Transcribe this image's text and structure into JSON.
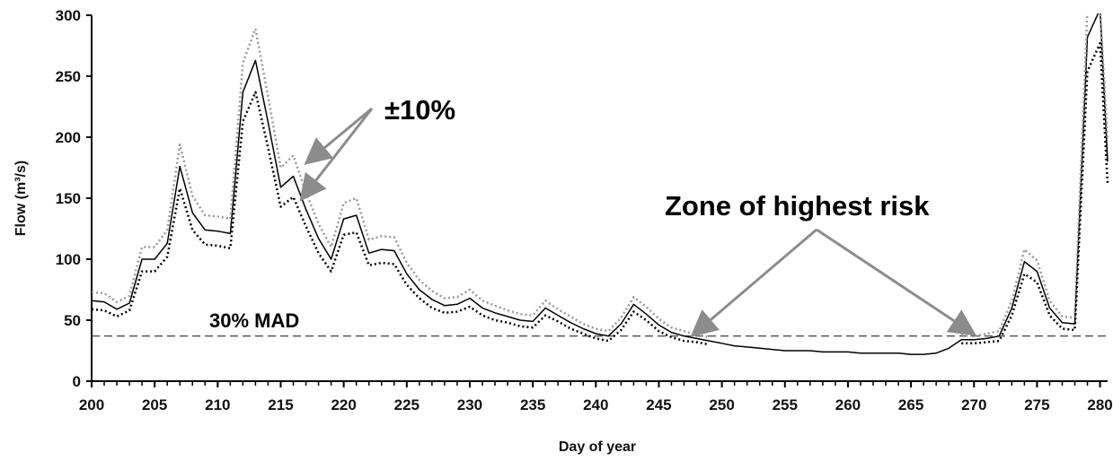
{
  "chart_data": {
    "type": "line",
    "xlabel": "Day of year",
    "ylabel": "Flow (m³/s)",
    "xlim": [
      200,
      280.6
    ],
    "ylim": [
      0,
      300
    ],
    "x_ticks": [
      200,
      205,
      210,
      215,
      220,
      225,
      230,
      235,
      240,
      245,
      250,
      255,
      260,
      265,
      270,
      275,
      280
    ],
    "y_ticks": [
      0,
      50,
      100,
      150,
      200,
      250,
      300
    ],
    "grid": false,
    "colors": {
      "flow": "#000000",
      "plus10": "#999999",
      "minus10": "#000000",
      "mad": "#555555",
      "arrow": "#8c8c8c"
    },
    "x": [
      200,
      201,
      202,
      203,
      204,
      205,
      206,
      207,
      208,
      209,
      210,
      211,
      212,
      213,
      214,
      215,
      216,
      217,
      218,
      219,
      220,
      221,
      222,
      223,
      224,
      225,
      226,
      227,
      228,
      229,
      230,
      231,
      232,
      233,
      234,
      235,
      236,
      237,
      238,
      239,
      240,
      241,
      242,
      243,
      244,
      245,
      246,
      247,
      248,
      249,
      250,
      251,
      252,
      253,
      254,
      255,
      256,
      257,
      258,
      259,
      260,
      261,
      262,
      263,
      264,
      265,
      266,
      267,
      268,
      269,
      270,
      271,
      272,
      273,
      274,
      275,
      276,
      277,
      278,
      279,
      280,
      280.6
    ],
    "series": [
      {
        "style": "solid",
        "values": [
          66,
          65,
          59,
          64,
          100,
          100,
          113,
          176,
          138,
          124,
          123,
          121,
          237,
          263,
          212,
          159,
          168,
          141,
          117,
          100,
          133,
          136,
          105,
          108,
          107,
          88,
          75,
          67,
          62,
          63,
          68,
          60,
          56,
          53,
          50,
          49,
          60,
          54,
          48,
          43,
          39,
          37,
          47,
          63,
          55,
          46,
          40,
          37,
          35,
          33,
          31,
          29,
          28,
          27,
          26,
          25,
          25,
          25,
          24,
          24,
          24,
          23,
          23,
          23,
          23,
          22,
          22,
          23,
          27,
          34,
          34,
          35,
          37,
          60,
          98,
          90,
          60,
          48,
          47,
          282,
          308,
          180
        ]
      },
      {
        "style": "dotted",
        "values": [
          73,
          72,
          65,
          70,
          110,
          110,
          124,
          194,
          152,
          136,
          135,
          133,
          261,
          289,
          233,
          175,
          185,
          155,
          129,
          110,
          146,
          150,
          116,
          119,
          118,
          97,
          83,
          74,
          68,
          69,
          75,
          66,
          62,
          58,
          55,
          54,
          66,
          59,
          53,
          47,
          43,
          41,
          52,
          69,
          61,
          51,
          44,
          41,
          38,
          36,
          null,
          null,
          null,
          null,
          null,
          null,
          null,
          null,
          null,
          null,
          null,
          null,
          null,
          null,
          null,
          null,
          null,
          null,
          null,
          38,
          37,
          39,
          41,
          66,
          108,
          99,
          66,
          53,
          52,
          310,
          338,
          198
        ]
      },
      {
        "style": "dotted",
        "values": [
          59,
          58,
          53,
          58,
          90,
          90,
          102,
          158,
          124,
          112,
          111,
          109,
          213,
          237,
          191,
          143,
          151,
          127,
          105,
          90,
          120,
          122,
          95,
          97,
          96,
          79,
          68,
          60,
          56,
          57,
          61,
          54,
          50,
          48,
          45,
          44,
          54,
          49,
          43,
          39,
          35,
          33,
          42,
          57,
          50,
          41,
          36,
          33,
          32,
          30,
          null,
          null,
          null,
          null,
          null,
          null,
          null,
          null,
          null,
          null,
          null,
          null,
          null,
          null,
          null,
          null,
          null,
          null,
          null,
          31,
          31,
          32,
          33,
          54,
          88,
          81,
          54,
          43,
          42,
          254,
          277,
          162
        ]
      }
    ],
    "annotations": {
      "pm10": "±10%",
      "zone": "Zone of highest risk",
      "mad": "30% MAD"
    },
    "mad_threshold": 37
  }
}
